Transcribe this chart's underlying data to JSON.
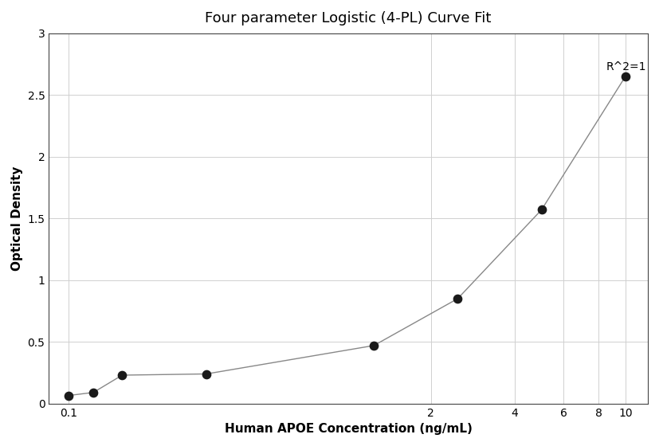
{
  "title": "Four parameter Logistic (4-PL) Curve Fit",
  "xlabel": "Human APOE Concentration (ng/mL)",
  "ylabel": "Optical Density",
  "data_x": [
    0.1,
    0.123,
    0.156,
    0.313,
    1.25,
    2.5,
    5.0,
    10.0
  ],
  "data_y": [
    0.065,
    0.09,
    0.23,
    0.24,
    0.47,
    0.85,
    1.57,
    2.65
  ],
  "xlim_log": [
    -1.07,
    1.08
  ],
  "ylim": [
    0,
    3.0
  ],
  "xticks": [
    0.1,
    2,
    4,
    6,
    8,
    10
  ],
  "xtick_labels": [
    "0.1",
    "2",
    "4",
    "6",
    "8",
    "10"
  ],
  "yticks": [
    0,
    0.5,
    1.0,
    1.5,
    2.0,
    2.5,
    3.0
  ],
  "ytick_labels": [
    "0",
    "0.5",
    "1",
    "1.5",
    "2",
    "2.5",
    "3"
  ],
  "r2_text": "R^2=1",
  "r2_x": 8.5,
  "r2_y": 2.77,
  "marker_color": "#1a1a1a",
  "line_color": "#888888",
  "grid_color": "#d0d0d0",
  "bg_color": "#ffffff",
  "title_fontsize": 13,
  "label_fontsize": 11,
  "tick_fontsize": 10,
  "marker_size": 55
}
